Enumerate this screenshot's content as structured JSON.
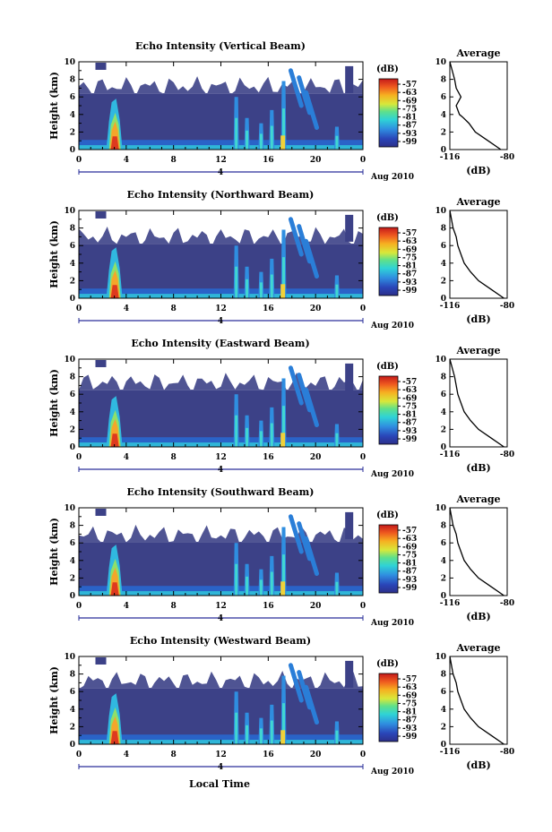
{
  "figure": {
    "xlabel": "Local Time",
    "date_note": "Aug 2010",
    "day_label": "4",
    "height_label": "Height (km)",
    "colorbar_unit": "(dB)",
    "colorbar_ticks": [
      "-57",
      "-63",
      "-69",
      "-75",
      "-81",
      "-87",
      "-93",
      "-99"
    ],
    "avg_title": "Average",
    "avg_xlabel": "(dB)",
    "avg_xticks": [
      "-116",
      "-80"
    ]
  },
  "chart_data": [
    {
      "type": "heatmap",
      "title": "Echo Intensity (Vertical Beam)",
      "beam": "vertical",
      "x_ticks": [
        "0",
        "4",
        "8",
        "12",
        "16",
        "20",
        "0"
      ],
      "y_ticks": [
        "0",
        "2",
        "4",
        "6",
        "8",
        "10"
      ],
      "xlim": [
        0,
        24
      ],
      "ylim": [
        0,
        10
      ],
      "clim": [
        -99,
        -57
      ],
      "top_km": 6.4,
      "avg_profile": {
        "x_dB": [
          -84,
          -92,
          -100,
          -104,
          -108,
          -110,
          -112,
          -109,
          -112,
          -113,
          -116
        ],
        "y_km": [
          0,
          1,
          2,
          3,
          3.7,
          4,
          5,
          6,
          7,
          8,
          10
        ],
        "xlim": [
          -116,
          -80
        ],
        "ylim": [
          0,
          10
        ]
      }
    },
    {
      "type": "heatmap",
      "title": "Echo Intensity (Northward Beam)",
      "beam": "northward",
      "x_ticks": [
        "0",
        "4",
        "8",
        "12",
        "16",
        "20",
        "0"
      ],
      "y_ticks": [
        "0",
        "2",
        "4",
        "6",
        "8",
        "10"
      ],
      "xlim": [
        0,
        24
      ],
      "ylim": [
        0,
        10
      ],
      "clim": [
        -99,
        -57
      ],
      "top_km": 6.2,
      "avg_profile": {
        "x_dB": [
          -82,
          -90,
          -98,
          -103,
          -107,
          -109,
          -111,
          -112,
          -114,
          -116
        ],
        "y_km": [
          0,
          1,
          2,
          3,
          4,
          5,
          6,
          7,
          8,
          10
        ],
        "xlim": [
          -116,
          -80
        ],
        "ylim": [
          0,
          10
        ]
      }
    },
    {
      "type": "heatmap",
      "title": "Echo Intensity (Eastward Beam)",
      "beam": "eastward",
      "x_ticks": [
        "0",
        "4",
        "8",
        "12",
        "16",
        "20",
        "0"
      ],
      "y_ticks": [
        "0",
        "2",
        "4",
        "6",
        "8",
        "10"
      ],
      "xlim": [
        0,
        24
      ],
      "ylim": [
        0,
        10
      ],
      "clim": [
        -99,
        -57
      ],
      "top_km": 6.5,
      "avg_profile": {
        "x_dB": [
          -82,
          -90,
          -98,
          -103,
          -107,
          -109,
          -111,
          -112,
          -113,
          -116
        ],
        "y_km": [
          0,
          1,
          2,
          3,
          4,
          5,
          6,
          7,
          8,
          10
        ],
        "xlim": [
          -116,
          -80
        ],
        "ylim": [
          0,
          10
        ]
      }
    },
    {
      "type": "heatmap",
      "title": "Echo Intensity (Southward Beam)",
      "beam": "southward",
      "x_ticks": [
        "0",
        "4",
        "8",
        "12",
        "16",
        "20",
        "0"
      ],
      "y_ticks": [
        "0",
        "2",
        "4",
        "6",
        "8",
        "10"
      ],
      "xlim": [
        0,
        24
      ],
      "ylim": [
        0,
        10
      ],
      "clim": [
        -99,
        -57
      ],
      "top_km": 6.1,
      "avg_profile": {
        "x_dB": [
          -82,
          -90,
          -98,
          -103,
          -107,
          -109,
          -111,
          -112,
          -114,
          -116
        ],
        "y_km": [
          0,
          1,
          2,
          3,
          4,
          5,
          6,
          7,
          8,
          10
        ],
        "xlim": [
          -116,
          -80
        ],
        "ylim": [
          0,
          10
        ]
      }
    },
    {
      "type": "heatmap",
      "title": "Echo Intensity (Westward Beam)",
      "beam": "westward",
      "x_ticks": [
        "0",
        "4",
        "8",
        "12",
        "16",
        "20",
        "0"
      ],
      "y_ticks": [
        "0",
        "2",
        "4",
        "6",
        "8",
        "10"
      ],
      "xlim": [
        0,
        24
      ],
      "ylim": [
        0,
        10
      ],
      "clim": [
        -99,
        -57
      ],
      "top_km": 6.4,
      "avg_profile": {
        "x_dB": [
          -82,
          -90,
          -98,
          -103,
          -107,
          -109,
          -111,
          -112,
          -114,
          -116
        ],
        "y_km": [
          0,
          1,
          2,
          3,
          4,
          5,
          6,
          7,
          8,
          10
        ],
        "xlim": [
          -116,
          -80
        ],
        "ylim": [
          0,
          10
        ]
      }
    }
  ]
}
